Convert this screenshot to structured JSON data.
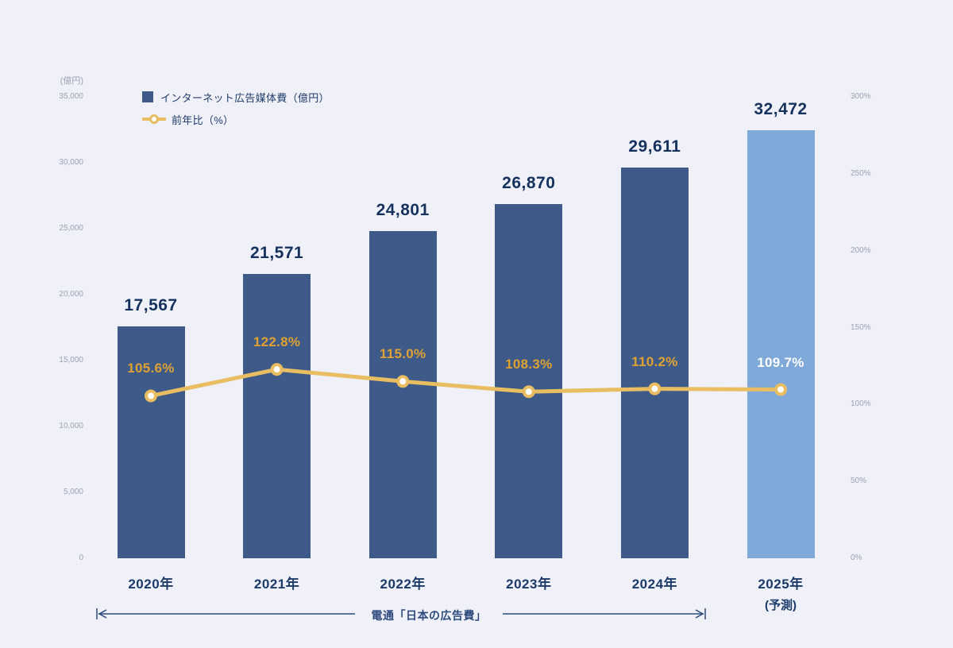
{
  "colors": {
    "background": "#f0f1f8",
    "bar": "#3d5a88",
    "bar_forecast": "#7fa9d8",
    "line": "#e9bd62",
    "marker_fill": "#ffffff",
    "value_label": "#15325e",
    "pct_label": "#dfa232",
    "pct_label_forecast": "#ffffff",
    "axis_tick": "#9aa2b5",
    "annotation": "#2c4a7c"
  },
  "chart_data": {
    "type": "bar+line",
    "categories": [
      "2020年",
      "2021年",
      "2022年",
      "2023年",
      "2024年",
      "2025年"
    ],
    "forecast_note": "(予測)",
    "series": [
      {
        "name": "インターネット広告媒体費（億円）",
        "type": "bar",
        "values": [
          17567,
          21571,
          24801,
          26870,
          29611,
          32472
        ],
        "labels": [
          "17,567",
          "21,571",
          "24,801",
          "26,870",
          "29,611",
          "32,472"
        ]
      },
      {
        "name": "前年比（%）",
        "type": "line",
        "values": [
          105.6,
          122.8,
          115.0,
          108.3,
          110.2,
          109.7
        ],
        "labels": [
          "105.6%",
          "122.8%",
          "115.0%",
          "108.3%",
          "110.2%",
          "109.7%"
        ]
      }
    ],
    "left_axis": {
      "unit": "(億円)",
      "min": 0,
      "max": 35000,
      "step": 5000,
      "tick_labels": [
        "35,000",
        "30,000",
        "25,000",
        "20,000",
        "15,000",
        "10,000",
        "5,000",
        "0"
      ]
    },
    "right_axis": {
      "min": 0,
      "max": 300,
      "step": 50,
      "tick_labels": [
        "300%",
        "250%",
        "200%",
        "150%",
        "100%",
        "50%",
        "0%"
      ]
    },
    "source_annotation": "電通「日本の広告費」"
  }
}
